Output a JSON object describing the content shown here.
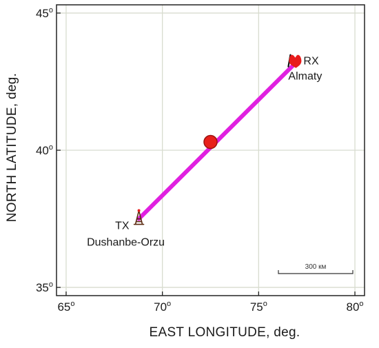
{
  "colors": {
    "path": "#e020e0",
    "midpoint_fill": "#e8201a",
    "midpoint_stroke": "#9a1410",
    "marker": "#e81c1c",
    "grid": "#d8dccf",
    "frame": "#222222",
    "background": "#ffffff"
  },
  "axes": {
    "x": {
      "title": "EAST LONGITUDE,  deg.",
      "range": [
        64.5,
        80.5
      ],
      "ticks": [
        {
          "value": 65,
          "label": "65",
          "sup": "o"
        },
        {
          "value": 70,
          "label": "70",
          "sup": "o"
        },
        {
          "value": 75,
          "label": "75",
          "sup": "o"
        },
        {
          "value": 80,
          "label": "80",
          "sup": "o"
        }
      ]
    },
    "y": {
      "title": "NORTH LATITUDE,  deg.",
      "range": [
        34.7,
        45.3
      ],
      "ticks": [
        {
          "value": 35,
          "label": "35",
          "sup": "o"
        },
        {
          "value": 40,
          "label": "40",
          "sup": "o"
        },
        {
          "value": 45,
          "label": "45",
          "sup": "o"
        }
      ]
    }
  },
  "grid": true,
  "path": {
    "from": {
      "lon": 68.78,
      "lat": 37.5
    },
    "to": {
      "lon": 76.8,
      "lat": 43.1
    }
  },
  "midpoint": {
    "lon": 72.5,
    "lat": 40.3
  },
  "tx": {
    "lon": 68.78,
    "lat": 37.5,
    "icon": "antenna-tower-icon",
    "line1": "TX",
    "line2": "Dushanbe-Orzu"
  },
  "rx": {
    "lon": 76.9,
    "lat": 43.25,
    "icon": "map-pin-icon",
    "line1": "RX",
    "line2": "Almaty"
  },
  "scale_bar": {
    "label": "300 км"
  }
}
